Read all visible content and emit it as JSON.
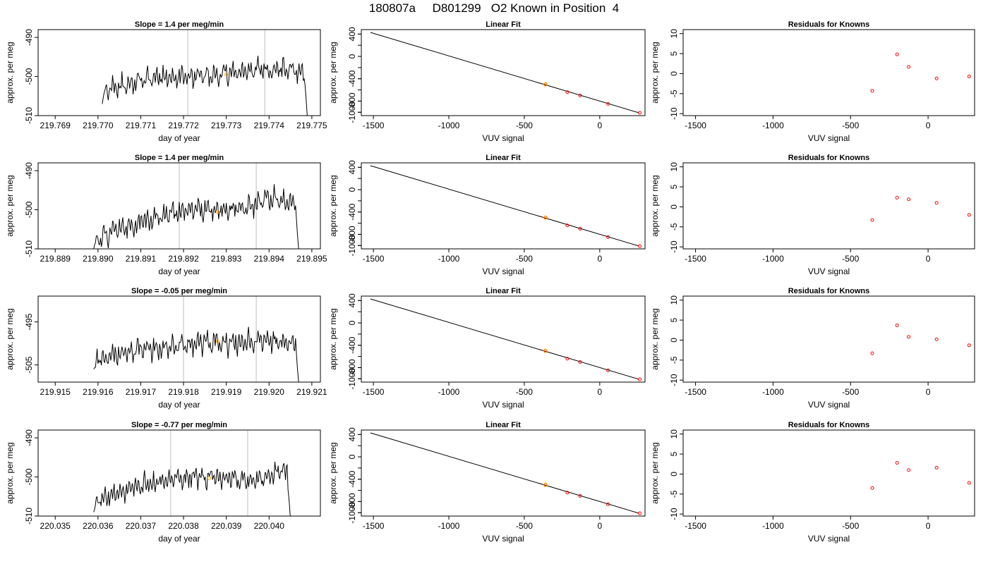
{
  "page_title": "180807a     D801299   O2 Known in Position  4",
  "chart_data": [
    {
      "type": "line",
      "panel": "time-series",
      "row": 0,
      "title": "Slope =  1.4  per meg/min",
      "xlabel": "day of year",
      "ylabel": "approx. per meg",
      "xlim": [
        219.7686,
        219.7752
      ],
      "ylim": [
        -510,
        -488
      ],
      "xticks": [
        "219.769",
        "219.770",
        "219.771",
        "219.772",
        "219.773",
        "219.774",
        "219.775"
      ],
      "yticks": [
        "-510",
        "-500",
        "-490"
      ],
      "segment_start": 219.7701,
      "segment_end": 219.7749,
      "series_start": -507,
      "series_trend": [
        -503.5,
        -502,
        -500,
        -500.5,
        -500,
        -499,
        -498.5,
        -498,
        -499
      ],
      "drop_end": -511,
      "vlines": [
        219.7721,
        219.7739
      ],
      "marker": {
        "x": 219.773,
        "y": -499.5
      },
      "colors": {
        "line": "#000000",
        "vline": "#bebebe",
        "marker": "#ffa500"
      }
    },
    {
      "type": "scatter",
      "panel": "linear-fit",
      "row": 0,
      "title": "Linear Fit",
      "xlabel": "VUV signal",
      "ylabel": "approx. per meg",
      "xlim": [
        -1580,
        300
      ],
      "ylim": [
        -1060,
        480
      ],
      "xticks": [
        -1500,
        -1000,
        -500,
        0
      ],
      "yticks": [
        -1000,
        -800,
        -400,
        0,
        400
      ],
      "line": {
        "x": [
          -1520,
          260
        ],
        "y": [
          430,
          -1010
        ]
      },
      "points": [
        {
          "x": -360,
          "y": -500
        },
        {
          "x": -215,
          "y": -640
        },
        {
          "x": -130,
          "y": -700
        },
        {
          "x": 55,
          "y": -850
        },
        {
          "x": 265,
          "y": -1010
        }
      ],
      "highlight": {
        "x": -360,
        "y": -500
      },
      "colors": {
        "line": "#000000",
        "points": "#ff0000",
        "highlight": "#ffa500"
      }
    },
    {
      "type": "scatter",
      "panel": "residuals",
      "row": 0,
      "title": "Residuals for Knowns",
      "xlabel": "VUV signal",
      "ylabel": "approx. per meg",
      "xlim": [
        -1580,
        300
      ],
      "ylim": [
        -10.5,
        11
      ],
      "xticks": [
        -1500,
        -1000,
        -500,
        0
      ],
      "yticks": [
        -10,
        -5,
        0,
        5,
        10
      ],
      "points": [
        {
          "x": -360,
          "y": -4.3
        },
        {
          "x": -200,
          "y": 4.8
        },
        {
          "x": -125,
          "y": 1.7
        },
        {
          "x": 55,
          "y": -1.2
        },
        {
          "x": 265,
          "y": -0.7
        }
      ],
      "colors": {
        "points": "#ff0000"
      }
    },
    {
      "type": "line",
      "panel": "time-series",
      "row": 1,
      "title": "Slope =  1.4  per meg/min",
      "xlabel": "day of year",
      "ylabel": "approx. per meg",
      "xlim": [
        219.8886,
        219.8952
      ],
      "ylim": [
        -510,
        -488
      ],
      "xticks": [
        "219.889",
        "219.890",
        "219.891",
        "219.892",
        "219.893",
        "219.894",
        "219.895"
      ],
      "yticks": [
        "-510",
        "-500",
        "-490"
      ],
      "segment_start": 219.8899,
      "segment_end": 219.8947,
      "series_start": -510,
      "series_trend": [
        -508,
        -505,
        -503,
        -501,
        -500,
        -500,
        -499,
        -497,
        -499
      ],
      "drop_end": -511,
      "vlines": [
        219.8919,
        219.8937
      ],
      "marker": {
        "x": 219.8928,
        "y": -500.5
      },
      "colors": {
        "line": "#000000",
        "vline": "#bebebe",
        "marker": "#ffa500"
      }
    },
    {
      "type": "scatter",
      "panel": "linear-fit",
      "row": 1,
      "title": "Linear Fit",
      "xlabel": "VUV signal",
      "ylabel": "approx. per meg",
      "xlim": [
        -1580,
        300
      ],
      "ylim": [
        -1060,
        480
      ],
      "xticks": [
        -1500,
        -1000,
        -500,
        0
      ],
      "yticks": [
        -1000,
        -800,
        -400,
        0,
        400
      ],
      "line": {
        "x": [
          -1520,
          260
        ],
        "y": [
          430,
          -1010
        ]
      },
      "points": [
        {
          "x": -360,
          "y": -500
        },
        {
          "x": -215,
          "y": -640
        },
        {
          "x": -130,
          "y": -700
        },
        {
          "x": 55,
          "y": -850
        },
        {
          "x": 265,
          "y": -1010
        }
      ],
      "highlight": {
        "x": -360,
        "y": -500
      },
      "colors": {
        "line": "#000000",
        "points": "#ff0000",
        "highlight": "#ffa500"
      }
    },
    {
      "type": "scatter",
      "panel": "residuals",
      "row": 1,
      "title": "Residuals for Knowns",
      "xlabel": "VUV signal",
      "ylabel": "approx. per meg",
      "xlim": [
        -1580,
        300
      ],
      "ylim": [
        -10.5,
        11
      ],
      "xticks": [
        -1500,
        -1000,
        -500,
        0
      ],
      "yticks": [
        -10,
        -5,
        0,
        5,
        10
      ],
      "points": [
        {
          "x": -360,
          "y": -3.3
        },
        {
          "x": -200,
          "y": 2.3
        },
        {
          "x": -125,
          "y": 1.9
        },
        {
          "x": 55,
          "y": 1.0
        },
        {
          "x": 265,
          "y": -2.0
        }
      ],
      "colors": {
        "points": "#ff0000"
      }
    },
    {
      "type": "line",
      "panel": "time-series",
      "row": 2,
      "title": "Slope =  -0.05  per meg/min",
      "xlabel": "day of year",
      "ylabel": "approx. per meg",
      "xlim": [
        219.9146,
        219.9212
      ],
      "ylim": [
        -509,
        -489
      ],
      "xticks": [
        "219.915",
        "219.916",
        "219.917",
        "219.918",
        "219.919",
        "219.920",
        "219.921"
      ],
      "yticks": [
        "-505",
        "-495"
      ],
      "segment_start": 219.9159,
      "segment_end": 219.9207,
      "series_start": -506,
      "series_trend": [
        -504,
        -502.5,
        -501,
        -501,
        -500,
        -500,
        -499.5,
        -499.5,
        -500
      ],
      "drop_end": -510,
      "vlines": [
        219.918,
        219.9197
      ],
      "marker": {
        "x": 219.9188,
        "y": -499.5
      },
      "colors": {
        "line": "#000000",
        "vline": "#bebebe",
        "marker": "#ffa500"
      }
    },
    {
      "type": "scatter",
      "panel": "linear-fit",
      "row": 2,
      "title": "Linear Fit",
      "xlabel": "VUV signal",
      "ylabel": "approx. per meg",
      "xlim": [
        -1580,
        300
      ],
      "ylim": [
        -1060,
        480
      ],
      "xticks": [
        -1500,
        -1000,
        -500,
        0
      ],
      "yticks": [
        -1000,
        -800,
        -400,
        0,
        400
      ],
      "line": {
        "x": [
          -1520,
          260
        ],
        "y": [
          430,
          -1010
        ]
      },
      "points": [
        {
          "x": -360,
          "y": -500
        },
        {
          "x": -215,
          "y": -640
        },
        {
          "x": -130,
          "y": -700
        },
        {
          "x": 55,
          "y": -850
        },
        {
          "x": 265,
          "y": -1010
        }
      ],
      "highlight": {
        "x": -360,
        "y": -500
      },
      "colors": {
        "line": "#000000",
        "points": "#ff0000",
        "highlight": "#ffa500"
      }
    },
    {
      "type": "scatter",
      "panel": "residuals",
      "row": 2,
      "title": "Residuals for Knowns",
      "xlabel": "VUV signal",
      "ylabel": "approx. per meg",
      "xlim": [
        -1580,
        300
      ],
      "ylim": [
        -10.5,
        11
      ],
      "xticks": [
        -1500,
        -1000,
        -500,
        0
      ],
      "yticks": [
        -10,
        -5,
        0,
        5,
        10
      ],
      "points": [
        {
          "x": -360,
          "y": -3.3
        },
        {
          "x": -200,
          "y": 3.7
        },
        {
          "x": -125,
          "y": 0.8
        },
        {
          "x": 55,
          "y": 0.2
        },
        {
          "x": 265,
          "y": -1.3
        }
      ],
      "colors": {
        "points": "#ff0000"
      }
    },
    {
      "type": "line",
      "panel": "time-series",
      "row": 3,
      "title": "Slope =  -0.77  per meg/min",
      "xlabel": "day of year",
      "ylabel": "approx. per meg",
      "xlim": [
        220.0346,
        220.0412
      ],
      "ylim": [
        -510,
        -488
      ],
      "xticks": [
        "220.035",
        "220.036",
        "220.037",
        "220.038",
        "220.039",
        "220.040"
      ],
      "yticks": [
        "-510",
        "-500",
        "-490"
      ],
      "segment_start": 220.0359,
      "segment_end": 220.0405,
      "series_start": -509,
      "series_trend": [
        -506,
        -504,
        -502,
        -501,
        -500,
        -500,
        -501,
        -500,
        -498
      ],
      "drop_end": -511,
      "vlines": [
        220.0377,
        220.0395
      ],
      "marker": {
        "x": 220.0386,
        "y": -500.3
      },
      "colors": {
        "line": "#000000",
        "vline": "#bebebe",
        "marker": "#ffa500"
      }
    },
    {
      "type": "scatter",
      "panel": "linear-fit",
      "row": 3,
      "title": "Linear Fit",
      "xlabel": "VUV signal",
      "ylabel": "approx. per meg",
      "xlim": [
        -1580,
        300
      ],
      "ylim": [
        -1060,
        480
      ],
      "xticks": [
        -1500,
        -1000,
        -500,
        0
      ],
      "yticks": [
        -1000,
        -800,
        -400,
        0,
        400
      ],
      "line": {
        "x": [
          -1520,
          260
        ],
        "y": [
          430,
          -1010
        ]
      },
      "points": [
        {
          "x": -360,
          "y": -500
        },
        {
          "x": -215,
          "y": -640
        },
        {
          "x": -130,
          "y": -700
        },
        {
          "x": 55,
          "y": -850
        },
        {
          "x": 265,
          "y": -1010
        }
      ],
      "highlight": {
        "x": -360,
        "y": -500
      },
      "colors": {
        "line": "#000000",
        "points": "#ff0000",
        "highlight": "#ffa500"
      }
    },
    {
      "type": "scatter",
      "panel": "residuals",
      "row": 3,
      "title": "Residuals for Knowns",
      "xlabel": "VUV signal",
      "ylabel": "approx. per meg",
      "xlim": [
        -1580,
        300
      ],
      "ylim": [
        -10.5,
        11
      ],
      "xticks": [
        -1500,
        -1000,
        -500,
        0
      ],
      "yticks": [
        -10,
        -5,
        0,
        5,
        10
      ],
      "points": [
        {
          "x": -360,
          "y": -3.5
        },
        {
          "x": -200,
          "y": 2.8
        },
        {
          "x": -125,
          "y": 1.0
        },
        {
          "x": 55,
          "y": 1.6
        },
        {
          "x": 265,
          "y": -2.2
        }
      ],
      "colors": {
        "points": "#ff0000"
      }
    }
  ]
}
